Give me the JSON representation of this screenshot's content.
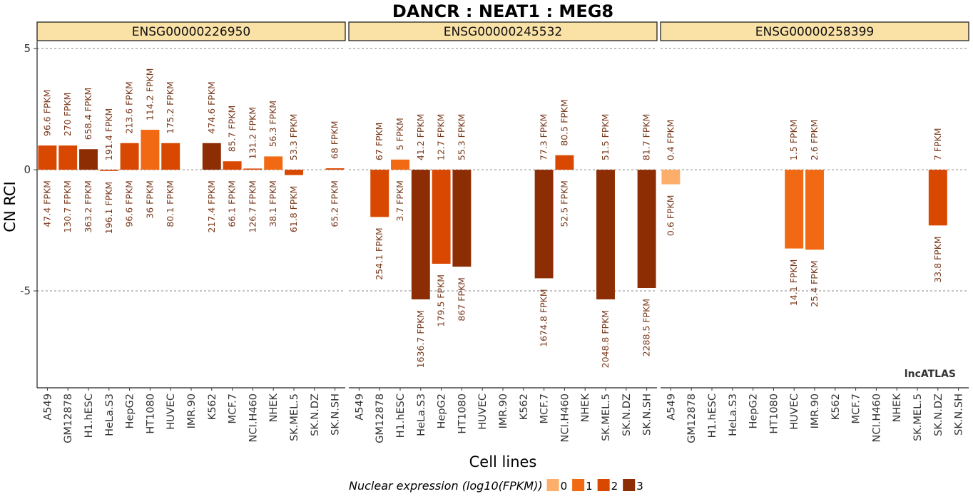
{
  "chart_data": {
    "type": "bar",
    "title": "DANCR : NEAT1 : MEG8",
    "xlabel": "Cell lines",
    "ylabel": "CN RCI",
    "ylim": [
      -9.0,
      5.3
    ],
    "yticks": [
      5,
      0,
      -5
    ],
    "ytick_labels": [
      "5",
      "0",
      "-5"
    ],
    "grid": "horizontal dashed at y ticks",
    "watermark": "lncATLAS",
    "categories": [
      "A549",
      "GM12878",
      "H1.hESC",
      "HeLa.S3",
      "HepG2",
      "HT1080",
      "HUVEC",
      "IMR.90",
      "K562",
      "MCF.7",
      "NCI.H460",
      "NHEK",
      "SK.MEL.5",
      "SK.N.DZ",
      "SK.N.SH"
    ],
    "legend": {
      "title": "Nuclear expression (log10(FPKM))",
      "placement": "bottom",
      "items": [
        {
          "label": "0",
          "color": "#fdae6b"
        },
        {
          "label": "1",
          "color": "#f16913"
        },
        {
          "label": "2",
          "color": "#d94801"
        },
        {
          "label": "3",
          "color": "#8c2d04"
        }
      ]
    },
    "facets": [
      {
        "name": "ENSG00000226950",
        "bars": [
          {
            "category": "A549",
            "value": 1.0,
            "level": 2,
            "top_label": "96.6 FPKM",
            "bottom_label": "47.4 FPKM"
          },
          {
            "category": "GM12878",
            "value": 1.0,
            "level": 2,
            "top_label": "270 FPKM",
            "bottom_label": "130.7 FPKM"
          },
          {
            "category": "H1.hESC",
            "value": 0.85,
            "level": 3,
            "top_label": "658.4 FPKM",
            "bottom_label": "363.2 FPKM"
          },
          {
            "category": "HeLa.S3",
            "value": -0.05,
            "level": 2,
            "top_label": "191.4 FPKM",
            "bottom_label": "196.1 FPKM"
          },
          {
            "category": "HepG2",
            "value": 1.1,
            "level": 2,
            "top_label": "213.6 FPKM",
            "bottom_label": "96.6 FPKM"
          },
          {
            "category": "HT1080",
            "value": 1.65,
            "level": 1,
            "top_label": "114.2 FPKM",
            "bottom_label": "36 FPKM"
          },
          {
            "category": "HUVEC",
            "value": 1.1,
            "level": 2,
            "top_label": "175.2 FPKM",
            "bottom_label": "80.1 FPKM"
          },
          {
            "category": "K562",
            "value": 1.1,
            "level": 3,
            "top_label": "474.6 FPKM",
            "bottom_label": "217.4 FPKM"
          },
          {
            "category": "MCF.7",
            "value": 0.35,
            "level": 2,
            "top_label": "85.7 FPKM",
            "bottom_label": "66.1 FPKM"
          },
          {
            "category": "NCI.H460",
            "value": 0.05,
            "level": 2,
            "top_label": "131.2 FPKM",
            "bottom_label": "126.7 FPKM"
          },
          {
            "category": "NHEK",
            "value": 0.55,
            "level": 1,
            "top_label": "56.3 FPKM",
            "bottom_label": "38.1 FPKM"
          },
          {
            "category": "SK.MEL.5",
            "value": -0.22,
            "level": 2,
            "top_label": "53.3 FPKM",
            "bottom_label": "61.8 FPKM"
          },
          {
            "category": "SK.N.SH",
            "value": 0.06,
            "level": 2,
            "top_label": "68 FPKM",
            "bottom_label": "65.2 FPKM"
          }
        ]
      },
      {
        "name": "ENSG00000245532",
        "bars": [
          {
            "category": "GM12878",
            "value": -1.95,
            "level": 2,
            "top_label": "67 FPKM",
            "bottom_label": "254.1 FPKM"
          },
          {
            "category": "H1.hESC",
            "value": 0.42,
            "level": 1,
            "top_label": "5 FPKM",
            "bottom_label": "3.7 FPKM"
          },
          {
            "category": "HeLa.S3",
            "value": -5.35,
            "level": 3,
            "top_label": "41.2 FPKM",
            "bottom_label": "1636.7 FPKM"
          },
          {
            "category": "HepG2",
            "value": -3.88,
            "level": 2,
            "top_label": "12.7 FPKM",
            "bottom_label": "179.5 FPKM"
          },
          {
            "category": "HT1080",
            "value": -4.0,
            "level": 3,
            "top_label": "55.3 FPKM",
            "bottom_label": "867 FPKM"
          },
          {
            "category": "MCF.7",
            "value": -4.48,
            "level": 3,
            "top_label": "77.3 FPKM",
            "bottom_label": "1674.8 FPKM"
          },
          {
            "category": "NCI.H460",
            "value": 0.6,
            "level": 2,
            "top_label": "80.5 FPKM",
            "bottom_label": "52.5 FPKM"
          },
          {
            "category": "SK.MEL.5",
            "value": -5.35,
            "level": 3,
            "top_label": "51.5 FPKM",
            "bottom_label": "2048.8 FPKM"
          },
          {
            "category": "SK.N.SH",
            "value": -4.88,
            "level": 3,
            "top_label": "81.7 FPKM",
            "bottom_label": "2288.5 FPKM"
          }
        ]
      },
      {
        "name": "ENSG00000258399",
        "bars": [
          {
            "category": "A549",
            "value": -0.6,
            "level": 0,
            "top_label": "0.4 FPKM",
            "bottom_label": "0.6 FPKM"
          },
          {
            "category": "HUVEC",
            "value": -3.25,
            "level": 1,
            "top_label": "1.5 FPKM",
            "bottom_label": "14.1 FPKM"
          },
          {
            "category": "IMR.90",
            "value": -3.3,
            "level": 1,
            "top_label": "2.6 FPKM",
            "bottom_label": "25.4 FPKM"
          },
          {
            "category": "SK.N.DZ",
            "value": -2.3,
            "level": 2,
            "top_label": "7 FPKM",
            "bottom_label": "33.8 FPKM"
          }
        ]
      }
    ]
  }
}
